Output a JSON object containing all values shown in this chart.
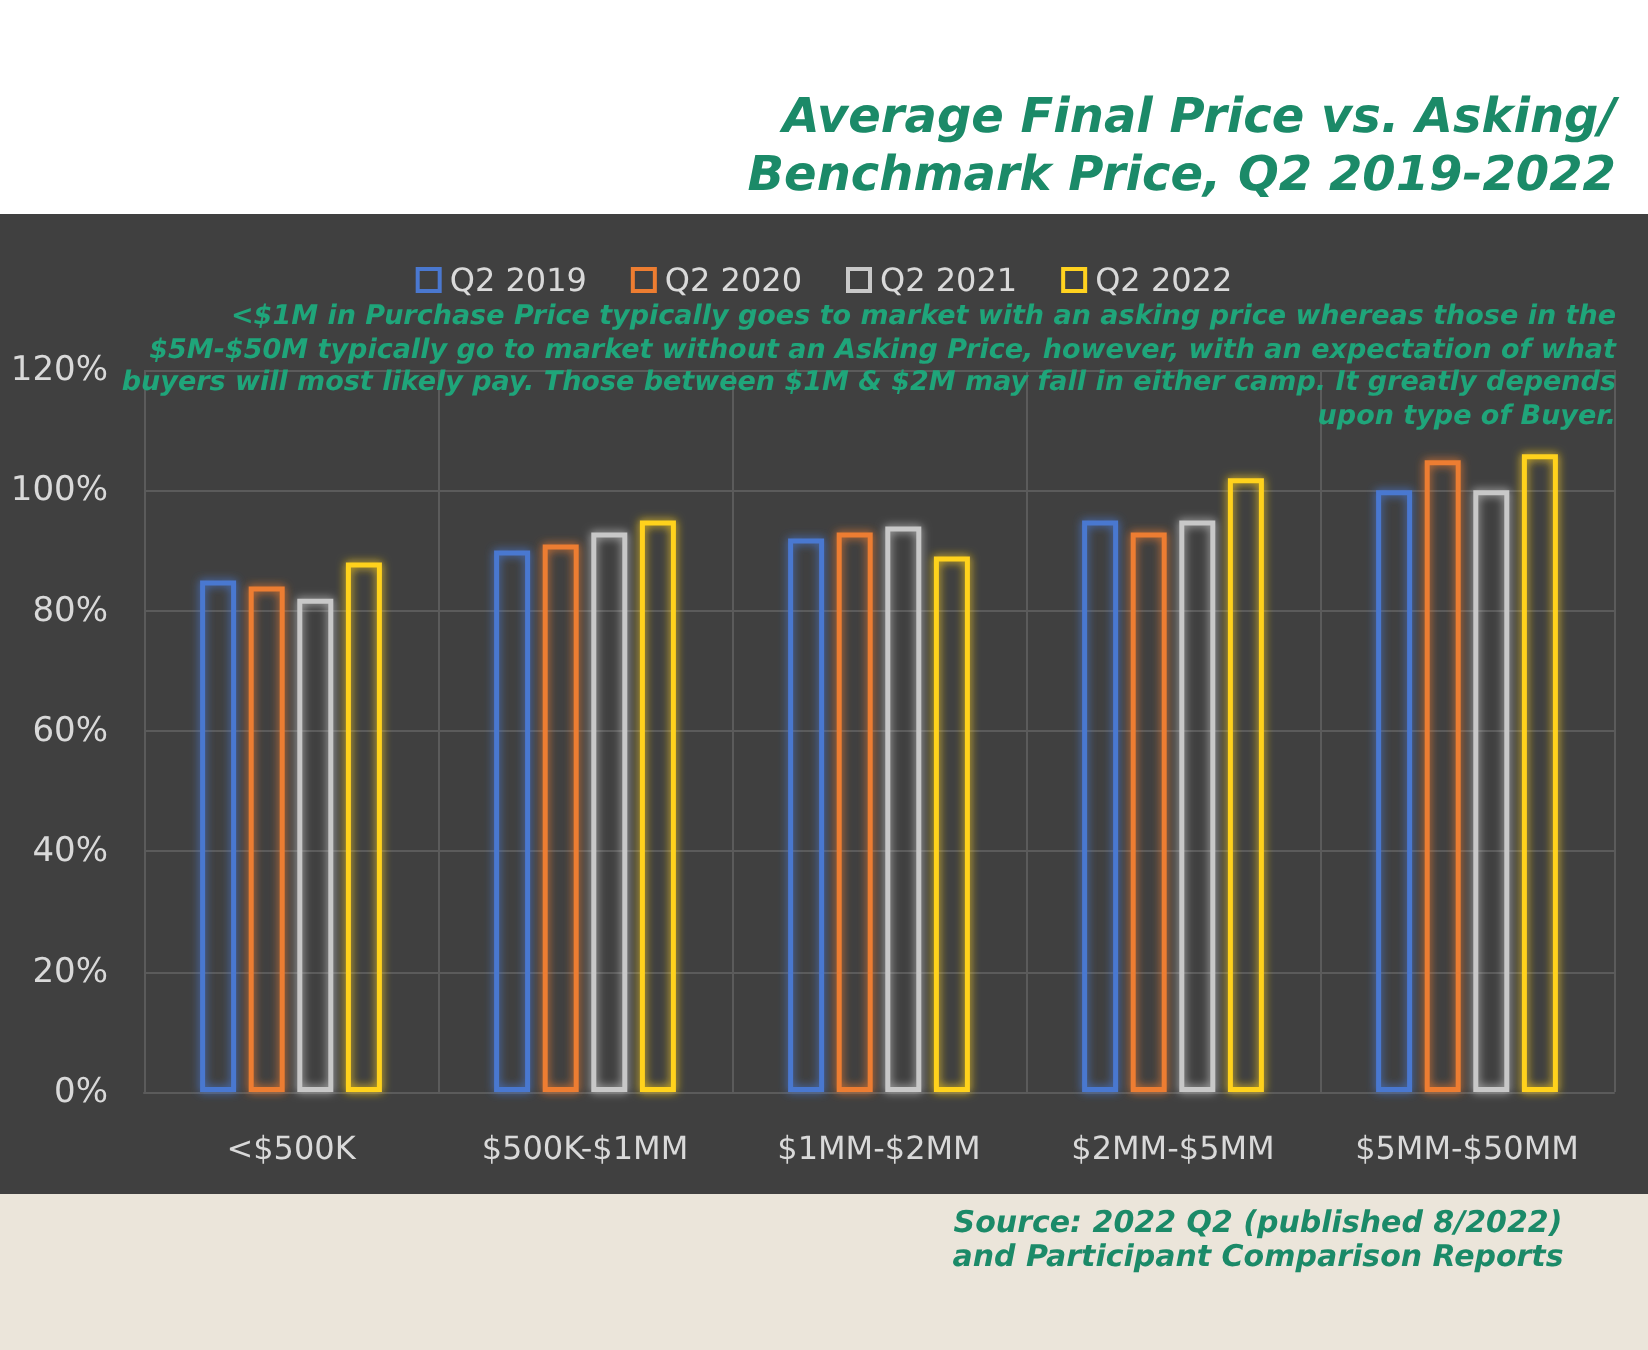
{
  "chart_data": {
    "type": "bar",
    "title": "Average Final Price vs. Asking/ Benchmark Price, Q2 2019-2022",
    "categories": [
      "<$500K",
      "$500K-$1MM",
      "$1MM-$2MM",
      "$2MM-$5MM",
      "$5MM-$50MM"
    ],
    "series": [
      {
        "name": "Q2 2019",
        "color": "#4a78d0",
        "values": [
          85,
          90,
          92,
          95,
          100
        ]
      },
      {
        "name": "Q2 2020",
        "color": "#ed7d31",
        "values": [
          84,
          91,
          93,
          93,
          105
        ]
      },
      {
        "name": "Q2 2021",
        "color": "#c8c8c8",
        "values": [
          82,
          93,
          94,
          95,
          100
        ]
      },
      {
        "name": "Q2 2022",
        "color": "#ffd21f",
        "values": [
          88,
          95,
          89,
          102,
          106
        ]
      }
    ],
    "ylim": [
      0,
      120
    ],
    "yticks": [
      {
        "value": 0,
        "label": "0%"
      },
      {
        "value": 20,
        "label": "20%"
      },
      {
        "value": 40,
        "label": "40%"
      },
      {
        "value": 60,
        "label": "60%"
      },
      {
        "value": 80,
        "label": "80%"
      },
      {
        "value": 100,
        "label": "100%"
      },
      {
        "value": 120,
        "label": "120%"
      }
    ],
    "grid": true,
    "legend": "top",
    "annotations": [
      "<$1M in Purchase Price typically goes to market with an asking price whereas those in the $5M-$50M typically go to market without an Asking Price, however, with an expectation of what buyers will most likely pay. Those between $1M & $2M may fall in either camp. It greatly depends upon type of Buyer.",
      "Source: 2022 Q2 (published 8/2022) and Participant Comparison Reports"
    ]
  }
}
